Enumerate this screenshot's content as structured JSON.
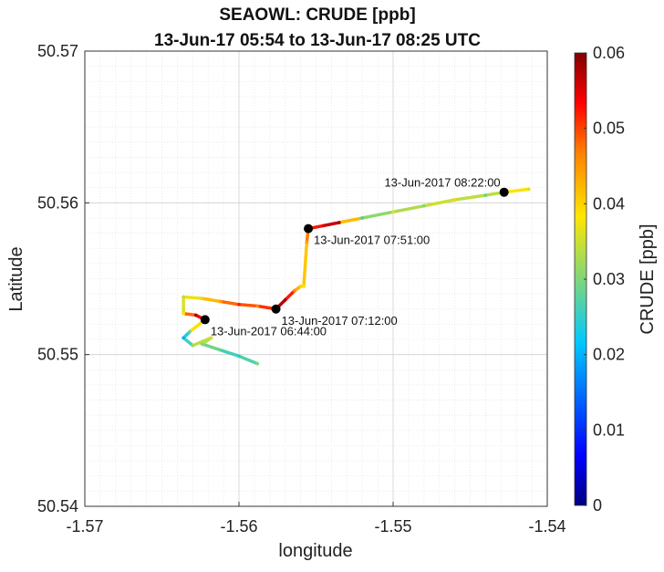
{
  "chart_data": {
    "type": "scatter",
    "title": "SEAOWL: CRUDE [ppb]",
    "subtitle": "13-Jun-17 05:54 to 13-Jun-17 08:25 UTC",
    "xlabel": "longitude",
    "ylabel": "Latitude",
    "colorbar_label": "CRUDE [ppb]",
    "xlim": [
      -1.57,
      -1.54
    ],
    "ylim": [
      50.54,
      50.57
    ],
    "clim": [
      0,
      0.06
    ],
    "x_ticks": [
      -1.57,
      -1.56,
      -1.55,
      -1.54
    ],
    "x_tick_labels": [
      "-1.57",
      "-1.56",
      "-1.55",
      "-1.54"
    ],
    "y_ticks": [
      50.54,
      50.55,
      50.56,
      50.57
    ],
    "y_tick_labels": [
      "50.54",
      "50.55",
      "50.56",
      "50.57"
    ],
    "c_ticks": [
      0,
      0.01,
      0.02,
      0.03,
      0.04,
      0.05,
      0.06
    ],
    "c_tick_labels": [
      "0",
      "0.01",
      "0.02",
      "0.03",
      "0.04",
      "0.05",
      "0.06"
    ],
    "grid": true,
    "track": [
      {
        "x": -1.5588,
        "y": 50.5494,
        "c": 0.03
      },
      {
        "x": -1.56,
        "y": 50.5499,
        "c": 0.024
      },
      {
        "x": -1.5612,
        "y": 50.5503,
        "c": 0.028
      },
      {
        "x": -1.5624,
        "y": 50.5507,
        "c": 0.03
      },
      {
        "x": -1.5618,
        "y": 50.5511,
        "c": 0.036
      },
      {
        "x": -1.563,
        "y": 50.5506,
        "c": 0.032
      },
      {
        "x": -1.5636,
        "y": 50.5511,
        "c": 0.02
      },
      {
        "x": -1.5632,
        "y": 50.5515,
        "c": 0.028
      },
      {
        "x": -1.5622,
        "y": 50.5523,
        "c": 0.05
      },
      {
        "x": -1.5628,
        "y": 50.5526,
        "c": 0.058
      },
      {
        "x": -1.5636,
        "y": 50.5527,
        "c": 0.038
      },
      {
        "x": -1.5636,
        "y": 50.5538,
        "c": 0.034
      },
      {
        "x": -1.5624,
        "y": 50.5537,
        "c": 0.04
      },
      {
        "x": -1.5612,
        "y": 50.5535,
        "c": 0.044
      },
      {
        "x": -1.56,
        "y": 50.5533,
        "c": 0.052
      },
      {
        "x": -1.5588,
        "y": 50.5532,
        "c": 0.046
      },
      {
        "x": -1.5576,
        "y": 50.553,
        "c": 0.056
      },
      {
        "x": -1.557,
        "y": 50.5536,
        "c": 0.058
      },
      {
        "x": -1.5564,
        "y": 50.5542,
        "c": 0.046
      },
      {
        "x": -1.556,
        "y": 50.5545,
        "c": 0.04
      },
      {
        "x": -1.5558,
        "y": 50.5545,
        "c": 0.038
      },
      {
        "x": -1.5556,
        "y": 50.5574,
        "c": 0.044
      },
      {
        "x": -1.5555,
        "y": 50.5583,
        "c": 0.05
      },
      {
        "x": -1.5545,
        "y": 50.5585,
        "c": 0.055
      },
      {
        "x": -1.5535,
        "y": 50.5587,
        "c": 0.058
      },
      {
        "x": -1.552,
        "y": 50.559,
        "c": 0.026
      },
      {
        "x": -1.55,
        "y": 50.5594,
        "c": 0.036
      },
      {
        "x": -1.548,
        "y": 50.5598,
        "c": 0.03
      },
      {
        "x": -1.546,
        "y": 50.5602,
        "c": 0.04
      },
      {
        "x": -1.544,
        "y": 50.5605,
        "c": 0.028
      },
      {
        "x": -1.5428,
        "y": 50.5607,
        "c": 0.04
      },
      {
        "x": -1.5412,
        "y": 50.5609,
        "c": 0.036
      }
    ],
    "markers": [
      {
        "x": -1.5622,
        "y": 50.5523,
        "label": "13-Jun-2017 06:44:00",
        "anchor": "right-below"
      },
      {
        "x": -1.5576,
        "y": 50.553,
        "label": "13-Jun-2017 07:12:00",
        "anchor": "right-below"
      },
      {
        "x": -1.5555,
        "y": 50.5583,
        "label": "13-Jun-2017 07:51:00",
        "anchor": "right-below"
      },
      {
        "x": -1.5428,
        "y": 50.5607,
        "label": "13-Jun-2017 08:22:00",
        "anchor": "left-above"
      }
    ]
  }
}
